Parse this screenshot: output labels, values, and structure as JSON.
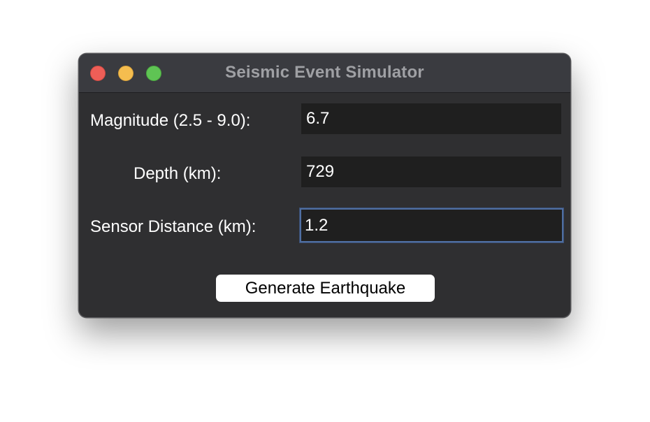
{
  "window": {
    "title": "Seismic Event Simulator"
  },
  "form": {
    "magnitude": {
      "label": "Magnitude (2.5 - 9.0):",
      "value": "6.7"
    },
    "depth": {
      "label": "Depth (km):",
      "value": "729"
    },
    "distance": {
      "label": "Sensor Distance (km):",
      "value": "1.2"
    }
  },
  "actions": {
    "generate_label": "Generate Earthquake"
  },
  "colors": {
    "window_bg": "#2f2f31",
    "titlebar_bg": "#3a3b40",
    "field_bg": "#1f1f1f",
    "focus_ring": "#4f6fa2",
    "close": "#ee5e57",
    "minimize": "#f5bd4f",
    "zoom": "#5fc454"
  }
}
